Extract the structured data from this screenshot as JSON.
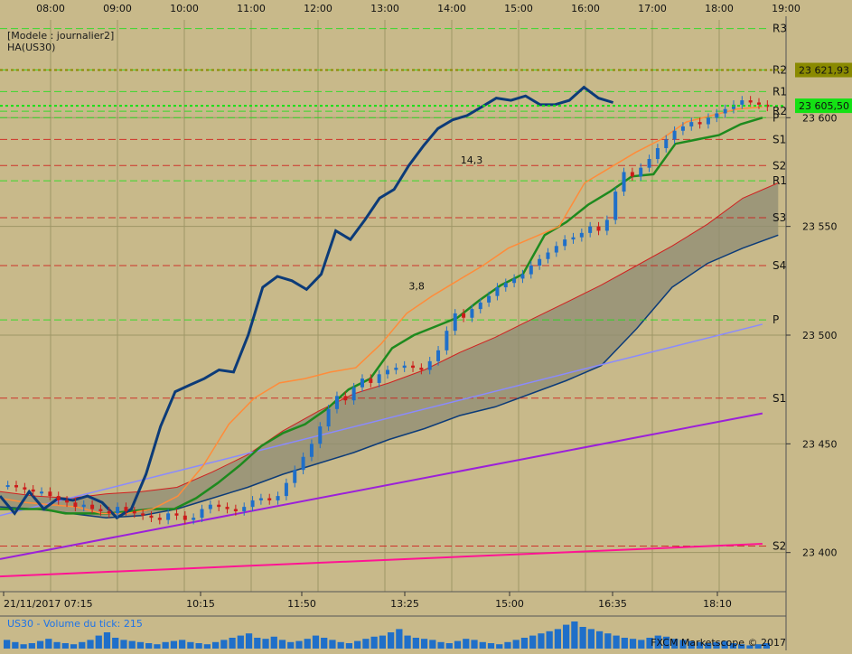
{
  "header": {
    "model_label": "[Modele : journalier2]",
    "indicator_label": "HA(US30)"
  },
  "volume_panel": {
    "label": "US30 - Volume du tick: 215",
    "watermark": "FXCM Marketscope © 2017"
  },
  "colors": {
    "background": "#c8b98a",
    "grid": "#9e9666",
    "candle_up": "#1f6fc9",
    "candle_down": "#cc1b1b",
    "ha_line": "#0c3b78",
    "kijun": "#1e8a1e",
    "tenkan": "#ff8c3a",
    "cloud_fill": "#8f8c73",
    "pivot_green": "#14e114",
    "pivot_red": "#d01010",
    "pivot_olive": "#8a8a00",
    "ma_purple": "#9b20d9",
    "ma_pink": "#ff1493",
    "ma_blue": "#8a8aff"
  },
  "chart_data": {
    "type": "candlestick",
    "symbol": "US30",
    "top_time_ticks": [
      "08:00",
      "09:00",
      "10:00",
      "11:00",
      "12:00",
      "13:00",
      "14:00",
      "15:00",
      "16:00",
      "17:00",
      "18:00",
      "19:00"
    ],
    "bottom_time_ticks": [
      "21/11/2017 07:15",
      "10:15",
      "11:50",
      "13:25",
      "15:00",
      "16:35",
      "18:10"
    ],
    "y_ticks": [
      23400,
      23450,
      23500,
      23550,
      23600
    ],
    "y_tick_labels": [
      "23 400",
      "23 450",
      "23 500",
      "23 550",
      "23 600"
    ],
    "ylim": [
      23382,
      23645
    ],
    "price_tags": [
      {
        "value": 23621.93,
        "label": "23 621,93",
        "color": "#8a8a00"
      },
      {
        "value": 23605.5,
        "label": "23 605,50",
        "color": "#14e114"
      }
    ],
    "pivot_levels": [
      {
        "label": "R3",
        "value": 23641
      },
      {
        "label": "R2",
        "value": 23622
      },
      {
        "label": "R1",
        "value": 23612
      },
      {
        "label": "R2",
        "value": 23603
      },
      {
        "label": "P",
        "value": 23600
      },
      {
        "label": "S1",
        "value": 23590
      },
      {
        "label": "S2",
        "value": 23578
      },
      {
        "label": "R1",
        "value": 23571
      },
      {
        "label": "S3",
        "value": 23554
      },
      {
        "label": "S4",
        "value": 23532
      },
      {
        "label": "P",
        "value": 23507
      },
      {
        "label": "S1",
        "value": 23471
      },
      {
        "label": "S2",
        "value": 23403
      }
    ],
    "annotations": [
      {
        "label": "14,3",
        "x": 0.6,
        "value": 23579
      },
      {
        "label": "3,8",
        "x": 0.53,
        "value": 23521
      }
    ],
    "ohlc_close": [
      23431,
      23430,
      23429,
      23428,
      23428,
      23426,
      23424,
      23423,
      23421,
      23422,
      23420,
      23419,
      23418,
      23421,
      23419,
      23418,
      23417,
      23416,
      23415,
      23418,
      23417,
      23415,
      23416,
      23420,
      23422,
      23421,
      23420,
      23419,
      23421,
      23424,
      23425,
      23424,
      23426,
      23432,
      23438,
      23444,
      23450,
      23458,
      23466,
      23472,
      23470,
      23476,
      23480,
      23478,
      23482,
      23484,
      23485,
      23486,
      23485,
      23484,
      23488,
      23493,
      23502,
      23510,
      23508,
      23512,
      23515,
      23518,
      23522,
      23524,
      23526,
      23528,
      23532,
      23535,
      23538,
      23541,
      23544,
      23545,
      23547,
      23550,
      23548,
      23553,
      23566,
      23575,
      23573,
      23577,
      23581,
      23586,
      23590,
      23594,
      23596,
      23598,
      23597,
      23600,
      23602,
      23604,
      23606,
      23608,
      23607,
      23606,
      23605
    ],
    "ha_line": [
      23426,
      23418,
      23428,
      23420,
      23425,
      23424,
      23426,
      23423,
      23416,
      23420,
      23436,
      23458,
      23474,
      23477,
      23480,
      23484,
      23483,
      23500,
      23522,
      23527,
      23525,
      23521,
      23528,
      23548,
      23544,
      23553,
      23563,
      23567,
      23578,
      23587,
      23595,
      23599,
      23601,
      23605,
      23609,
      23608,
      23610,
      23606,
      23606,
      23608,
      23614,
      23609,
      23607
    ],
    "kijun": [
      23420,
      23420,
      23420,
      23418,
      23418,
      23418,
      23419,
      23420,
      23420,
      23425,
      23432,
      23440,
      23449,
      23455,
      23459,
      23466,
      23475,
      23480,
      23494,
      23500,
      23504,
      23508,
      23516,
      23523,
      23528,
      23546,
      23552,
      23560,
      23566,
      23573,
      23574,
      23588,
      23590,
      23592,
      23597,
      23600
    ],
    "tenkan": [
      23425,
      23423,
      23422,
      23421,
      23418,
      23418,
      23420,
      23426,
      23440,
      23459,
      23471,
      23478,
      23480,
      23483,
      23485,
      23496,
      23510,
      23518,
      23525,
      23532,
      23540,
      23545,
      23550,
      23570,
      23577,
      23584,
      23590,
      23598,
      23601,
      23604,
      23605
    ],
    "cloud_upper": [
      23428,
      23426,
      23425,
      23427,
      23428,
      23430,
      23437,
      23445,
      23456,
      23465,
      23473,
      23478,
      23484,
      23492,
      23499,
      23507,
      23515,
      23523,
      23532,
      23541,
      23551,
      23563,
      23570
    ],
    "cloud_lower": [
      23421,
      23420,
      23418,
      23416,
      23417,
      23420,
      23425,
      23430,
      23436,
      23441,
      23446,
      23452,
      23457,
      23463,
      23467,
      23473,
      23479,
      23486,
      23503,
      23522,
      23533,
      23540,
      23546
    ],
    "ma_purple": [
      23397,
      23464
    ],
    "ma_pink": [
      23389,
      23404
    ],
    "ma_blue": [
      23417,
      23505
    ],
    "volume": [
      8,
      6,
      4,
      5,
      7,
      9,
      6,
      5,
      4,
      6,
      8,
      12,
      15,
      10,
      8,
      7,
      6,
      5,
      4,
      6,
      7,
      8,
      6,
      5,
      4,
      6,
      8,
      10,
      12,
      14,
      10,
      9,
      11,
      8,
      6,
      7,
      9,
      12,
      10,
      8,
      6,
      5,
      7,
      9,
      11,
      12,
      15,
      18,
      12,
      10,
      9,
      8,
      6,
      5,
      7,
      9,
      8,
      6,
      5,
      4,
      6,
      8,
      10,
      12,
      14,
      16,
      18,
      22,
      25,
      20,
      18,
      16,
      14,
      12,
      10,
      9,
      8,
      10,
      12,
      11,
      9,
      8,
      7,
      6,
      5,
      6,
      7,
      5,
      4,
      3,
      4,
      5
    ]
  }
}
